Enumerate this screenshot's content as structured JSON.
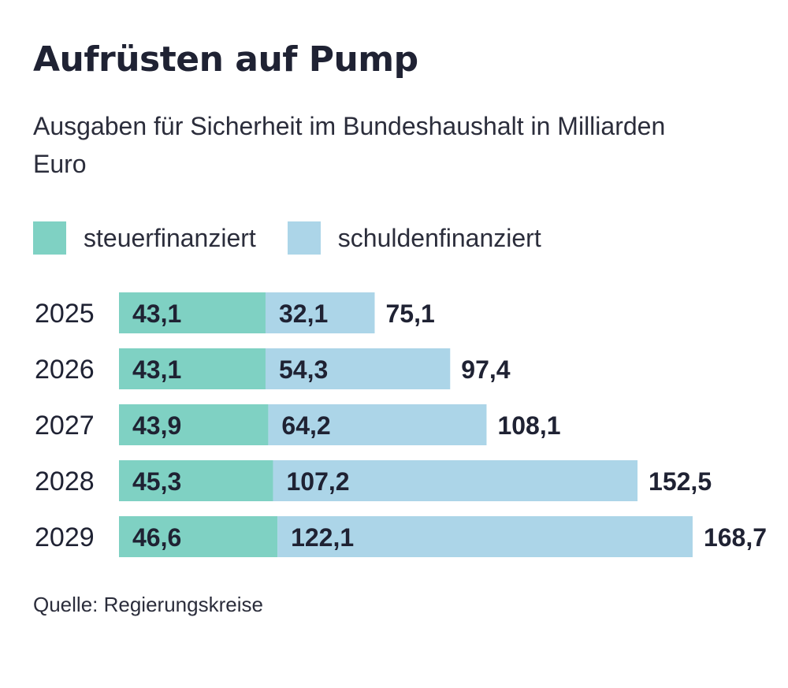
{
  "header": {
    "title": "Aufrüsten auf Pump",
    "subtitle": "Ausgaben für Sicherheit im Bundeshaushalt in Milliarden Euro"
  },
  "colors": {
    "steuer": "#7fd1c3",
    "schulden": "#acd5e8",
    "text": "#1f2233"
  },
  "chart_data": {
    "type": "bar",
    "orientation": "horizontal",
    "stacked": true,
    "title": "Aufrüsten auf Pump",
    "subtitle": "Ausgaben für Sicherheit im Bundeshaushalt in Milliarden Euro",
    "unit": "Milliarden Euro",
    "categories": [
      "2025",
      "2026",
      "2027",
      "2028",
      "2029"
    ],
    "series": [
      {
        "name": "steuerfinanziert",
        "values": [
          43.1,
          43.1,
          43.9,
          45.3,
          46.6
        ],
        "labels": [
          "43,1",
          "43,1",
          "43,9",
          "45,3",
          "46,6"
        ]
      },
      {
        "name": "schuldenfinanziert",
        "values": [
          32.1,
          54.3,
          64.2,
          107.2,
          122.1
        ],
        "labels": [
          "32,1",
          "54,3",
          "64,2",
          "107,2",
          "122,1"
        ]
      }
    ],
    "totals": [
      75.1,
      97.4,
      108.1,
      152.5,
      168.7
    ],
    "total_labels": [
      "75,1",
      "97,4",
      "108,1",
      "152,5",
      "168,7"
    ],
    "legend_position": "top-left",
    "grid": false
  },
  "footer": {
    "source": "Quelle: Regierungskreise"
  }
}
